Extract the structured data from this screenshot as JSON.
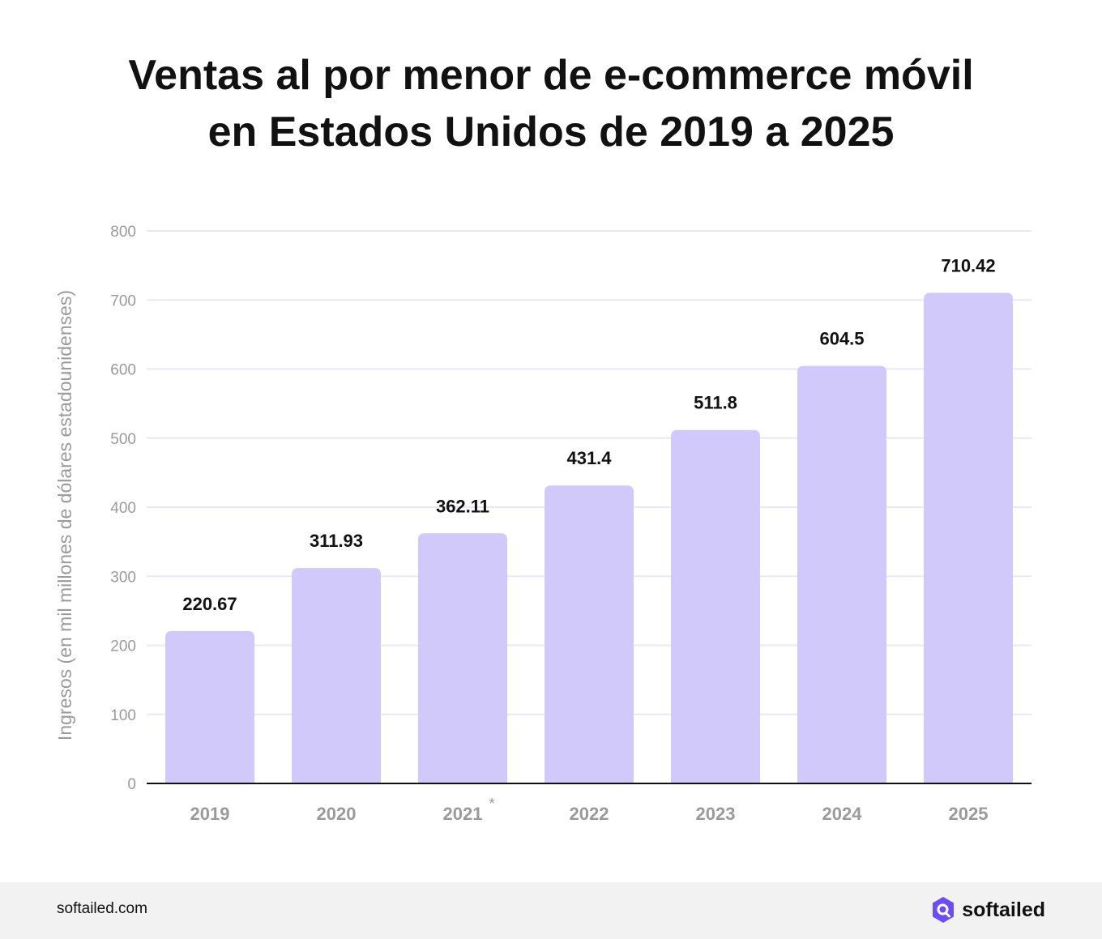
{
  "title_lines": [
    "Ventas al por menor de e-commerce móvil",
    "en Estados Unidos de 2019 a 2025"
  ],
  "chart_data": {
    "type": "bar",
    "title": "Ventas al por menor de e-commerce móvil en Estados Unidos de 2019 a 2025",
    "xlabel": "",
    "ylabel": "Ingresos (en mil millones de dólares estadounidenses)",
    "categories": [
      "2019",
      "2020",
      "2021",
      "2022",
      "2023",
      "2024",
      "2025"
    ],
    "category_marks": [
      "",
      "",
      "*",
      "",
      "",
      "",
      ""
    ],
    "values": [
      220.67,
      311.93,
      362.11,
      431.4,
      511.8,
      604.5,
      710.42
    ],
    "value_labels": [
      "220.67",
      "311.93",
      "362.11",
      "431.4",
      "511.8",
      "604.5",
      "710.42"
    ],
    "yticks": [
      0,
      100,
      200,
      300,
      400,
      500,
      600,
      700,
      800
    ],
    "ylim": [
      0,
      800
    ],
    "grid": true,
    "legend": "none",
    "colors": {
      "bar": "#d2c9fb",
      "grid": "#e8e8f4",
      "axis": "#111111",
      "tick_label": "#9a9a9a",
      "value_label": "#111111"
    }
  },
  "footer": {
    "site": "softailed.com",
    "brand_name": "softailed",
    "brand_icon": "softailed-logo-icon",
    "brand_color": "#6c4cf5"
  }
}
